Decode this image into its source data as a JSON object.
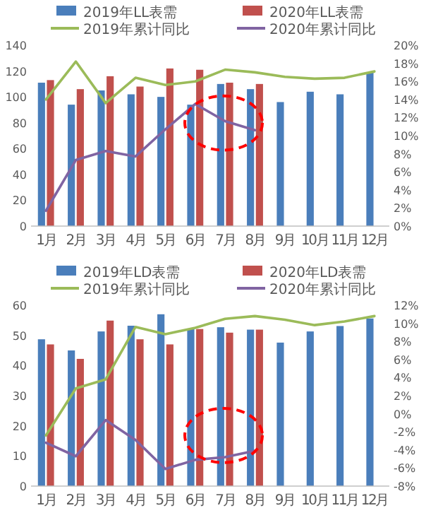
{
  "chart_data": [
    {
      "type": "bar",
      "categories": [
        "1月",
        "2月",
        "3月",
        "4月",
        "5月",
        "6月",
        "7月",
        "8月",
        "9月",
        "10月",
        "11月",
        "12月"
      ],
      "legend": "top",
      "ylim": [
        0,
        140
      ],
      "yticks": [
        0,
        20,
        40,
        60,
        80,
        100,
        120,
        140
      ],
      "y2lim": [
        0,
        20
      ],
      "y2ticks": [
        {
          "value": 0,
          "label": "0%"
        },
        {
          "value": 2,
          "label": "2%"
        },
        {
          "value": 4,
          "label": "4%"
        },
        {
          "value": 6,
          "label": "6%"
        },
        {
          "value": 8,
          "label": "8%"
        },
        {
          "value": 10,
          "label": "10%"
        },
        {
          "value": 12,
          "label": "12%"
        },
        {
          "value": 14,
          "label": "14%"
        },
        {
          "value": 16,
          "label": "16%"
        },
        {
          "value": 18,
          "label": "18%"
        },
        {
          "value": 20,
          "label": "20%"
        }
      ],
      "series": [
        {
          "name": "2019年LL表需",
          "color": "#4a7ebb",
          "values": [
            111,
            94,
            105,
            102,
            100,
            94,
            110,
            106,
            96,
            104,
            102,
            119
          ]
        },
        {
          "name": "2020年LL表需",
          "color": "#c0504d",
          "values": [
            113,
            106,
            116,
            108,
            122,
            121,
            111,
            110,
            null,
            null,
            null,
            null
          ]
        },
        {
          "name": "2019年累计同比",
          "type": "line",
          "axis": "y2",
          "color": "#9bbb59",
          "values": [
            14.0,
            18.2,
            13.6,
            16.4,
            15.6,
            16.0,
            17.3,
            17.0,
            16.5,
            16.3,
            16.4,
            17.1
          ]
        },
        {
          "name": "2020年累计同比",
          "type": "line",
          "axis": "y2",
          "color": "#8064a2",
          "values": [
            1.7,
            7.3,
            8.3,
            7.7,
            10.7,
            13.5,
            11.6,
            10.6,
            null,
            null,
            null,
            null
          ]
        }
      ]
    },
    {
      "type": "bar",
      "categories": [
        "1月",
        "2月",
        "3月",
        "4月",
        "5月",
        "6月",
        "7月",
        "8月",
        "9月",
        "10月",
        "11月",
        "12月"
      ],
      "legend": "top",
      "ylim": [
        0,
        60
      ],
      "yticks": [
        0,
        10,
        20,
        30,
        40,
        50,
        60
      ],
      "y2lim": [
        -8,
        12
      ],
      "y2ticks": [
        {
          "value": -8,
          "label": "-8%"
        },
        {
          "value": -6,
          "label": "-6%"
        },
        {
          "value": -4,
          "label": "-4%"
        },
        {
          "value": -2,
          "label": "-2%"
        },
        {
          "value": 0,
          "label": "0%"
        },
        {
          "value": 2,
          "label": "2%"
        },
        {
          "value": 4,
          "label": "4%"
        },
        {
          "value": 6,
          "label": "6%"
        },
        {
          "value": 8,
          "label": "8%"
        },
        {
          "value": 10,
          "label": "10%"
        },
        {
          "value": 12,
          "label": "12%"
        }
      ],
      "series": [
        {
          "name": "2019年LD表需",
          "color": "#4a7ebb",
          "values": [
            48.7,
            45,
            51.3,
            53.2,
            57,
            52.2,
            52.7,
            51.9,
            47.6,
            51.3,
            53.1,
            55.6
          ]
        },
        {
          "name": "2020年LD表需",
          "color": "#c0504d",
          "values": [
            47,
            42.2,
            54.9,
            48.7,
            47,
            52.1,
            50.9,
            51.9,
            null,
            null,
            null,
            null
          ]
        },
        {
          "name": "2019年累计同比",
          "type": "line",
          "axis": "y2",
          "color": "#9bbb59",
          "values": [
            -2.4,
            2.8,
            3.8,
            9.6,
            8.8,
            9.5,
            10.5,
            10.8,
            10.4,
            9.8,
            10.2,
            10.8
          ]
        },
        {
          "name": "2020年累计同比",
          "type": "line",
          "axis": "y2",
          "color": "#8064a2",
          "values": [
            -3.2,
            -4.7,
            -0.7,
            -2.9,
            -6.1,
            -5.1,
            -4.8,
            -4.1,
            null,
            null,
            null,
            null
          ]
        }
      ]
    }
  ]
}
